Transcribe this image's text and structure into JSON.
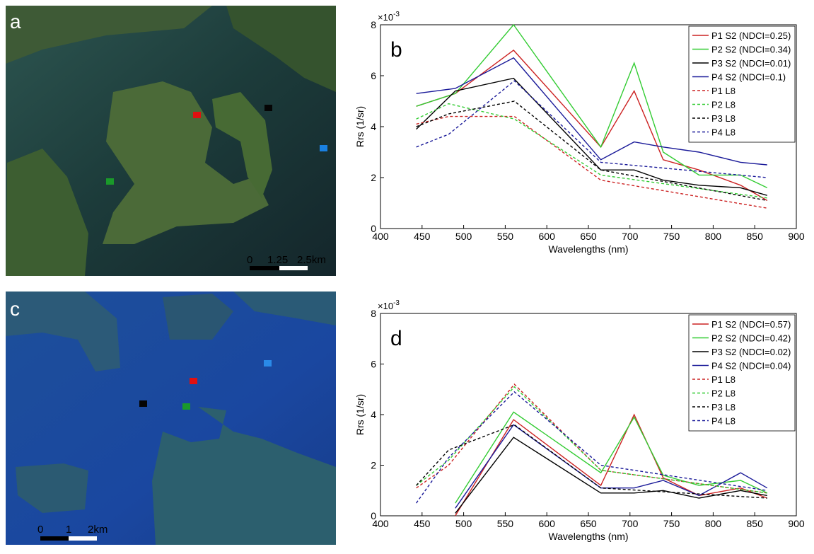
{
  "images": [
    {
      "label": "a",
      "scale_labels": [
        "0",
        "1.25",
        "2.5km"
      ]
    },
    {
      "label": "c",
      "scale_labels": [
        "0",
        "1",
        "2km"
      ]
    }
  ],
  "chart_data": [
    {
      "type": "line",
      "panel_label": "b",
      "y_multiplier": {
        "base": "×10",
        "exponent": "-3"
      },
      "xlabel": "Wavelengths (nm)",
      "ylabel": "Rrs (1/sr)",
      "xlim": [
        400,
        900
      ],
      "xticks": [
        400,
        450,
        500,
        550,
        600,
        650,
        700,
        750,
        800,
        850,
        900
      ],
      "ylim": [
        0,
        8
      ],
      "yticks": [
        0,
        2,
        4,
        6,
        8
      ],
      "legend": "upper right",
      "series": [
        {
          "name": "P1 S2 (NDCI=0.25)",
          "color": "#cc2222",
          "linestyle": "solid",
          "x": [
            443,
            490,
            560,
            665,
            705,
            740,
            783,
            833,
            865
          ],
          "values": [
            4.8,
            5.3,
            7.0,
            3.2,
            5.4,
            2.7,
            2.3,
            1.7,
            1.1
          ]
        },
        {
          "name": "P2 S2 (NDCI=0.34)",
          "color": "#33cc33",
          "linestyle": "solid",
          "x": [
            443,
            490,
            560,
            665,
            705,
            740,
            783,
            833,
            865
          ],
          "values": [
            4.8,
            5.3,
            8.0,
            3.2,
            6.5,
            3.0,
            2.1,
            2.1,
            1.6
          ]
        },
        {
          "name": "P3 S2 (NDCI=0.01)",
          "color": "#000000",
          "linestyle": "solid",
          "x": [
            443,
            490,
            560,
            665,
            705,
            740,
            783,
            833,
            865
          ],
          "values": [
            3.9,
            5.4,
            5.9,
            2.3,
            2.3,
            1.9,
            1.7,
            1.6,
            1.3
          ]
        },
        {
          "name": "P4 S2 (NDCI=0.1)",
          "color": "#1a1a99",
          "linestyle": "solid",
          "x": [
            443,
            490,
            560,
            665,
            705,
            740,
            783,
            833,
            865
          ],
          "values": [
            5.3,
            5.5,
            6.7,
            2.7,
            3.4,
            3.2,
            3.0,
            2.6,
            2.5
          ]
        },
        {
          "name": "P1 L8",
          "color": "#cc2222",
          "linestyle": "dashed",
          "x": [
            443,
            482,
            561,
            665,
            865
          ],
          "values": [
            4.1,
            4.4,
            4.4,
            1.9,
            0.8
          ]
        },
        {
          "name": "P2 L8",
          "color": "#33cc33",
          "linestyle": "dashed",
          "x": [
            443,
            482,
            561,
            665,
            865
          ],
          "values": [
            4.3,
            4.9,
            4.3,
            2.1,
            1.2
          ]
        },
        {
          "name": "P3 L8",
          "color": "#000000",
          "linestyle": "dashed",
          "x": [
            443,
            482,
            561,
            665,
            865
          ],
          "values": [
            4.0,
            4.5,
            5.0,
            2.3,
            1.1
          ]
        },
        {
          "name": "P4 L8",
          "color": "#1a1a99",
          "linestyle": "dashed",
          "x": [
            443,
            482,
            561,
            665,
            865
          ],
          "values": [
            3.2,
            3.7,
            5.8,
            2.6,
            2.0
          ]
        }
      ]
    },
    {
      "type": "line",
      "panel_label": "d",
      "y_multiplier": {
        "base": "×10",
        "exponent": "-3"
      },
      "xlabel": "Wavelengths (nm)",
      "ylabel": "Rrs (1/sr)",
      "xlim": [
        400,
        900
      ],
      "xticks": [
        400,
        450,
        500,
        550,
        600,
        650,
        700,
        750,
        800,
        850,
        900
      ],
      "ylim": [
        0,
        8
      ],
      "yticks": [
        0,
        2,
        4,
        6,
        8
      ],
      "legend": "upper right",
      "series": [
        {
          "name": "P1 S2 (NDCI=0.57)",
          "color": "#cc2222",
          "linestyle": "solid",
          "x": [
            443,
            490,
            560,
            665,
            705,
            740,
            783,
            833,
            865
          ],
          "values": [
            null,
            0.0,
            3.8,
            1.2,
            4.0,
            1.5,
            0.8,
            1.1,
            0.7
          ]
        },
        {
          "name": "P2 S2 (NDCI=0.42)",
          "color": "#33cc33",
          "linestyle": "solid",
          "x": [
            443,
            490,
            560,
            665,
            705,
            740,
            783,
            833,
            865
          ],
          "values": [
            null,
            0.5,
            4.1,
            1.7,
            3.9,
            1.6,
            1.2,
            1.4,
            0.9
          ]
        },
        {
          "name": "P3 S2 (NDCI=0.02)",
          "color": "#000000",
          "linestyle": "solid",
          "x": [
            443,
            490,
            560,
            665,
            705,
            740,
            783,
            833,
            865
          ],
          "values": [
            null,
            0.1,
            3.1,
            0.9,
            0.9,
            1.0,
            0.7,
            1.0,
            0.8
          ]
        },
        {
          "name": "P4 S2 (NDCI=0.04)",
          "color": "#1a1a99",
          "linestyle": "solid",
          "x": [
            443,
            490,
            560,
            665,
            705,
            740,
            783,
            833,
            865
          ],
          "values": [
            null,
            0.3,
            3.6,
            1.1,
            1.1,
            1.4,
            0.8,
            1.7,
            1.1
          ]
        },
        {
          "name": "P1 L8",
          "color": "#cc2222",
          "linestyle": "dashed",
          "x": [
            443,
            482,
            561,
            665,
            865
          ],
          "values": [
            1.1,
            2.0,
            5.2,
            1.8,
            0.9
          ]
        },
        {
          "name": "P2 L8",
          "color": "#33cc33",
          "linestyle": "dashed",
          "x": [
            443,
            482,
            561,
            665,
            865
          ],
          "values": [
            1.2,
            2.2,
            5.1,
            1.8,
            0.9
          ]
        },
        {
          "name": "P3 L8",
          "color": "#000000",
          "linestyle": "dashed",
          "x": [
            443,
            482,
            561,
            665,
            865
          ],
          "values": [
            1.2,
            2.6,
            3.6,
            1.1,
            0.7
          ]
        },
        {
          "name": "P4 L8",
          "color": "#1a1a99",
          "linestyle": "dashed",
          "x": [
            443,
            482,
            561,
            665,
            865
          ],
          "values": [
            0.5,
            2.3,
            4.9,
            2.0,
            1.0
          ]
        }
      ]
    }
  ]
}
